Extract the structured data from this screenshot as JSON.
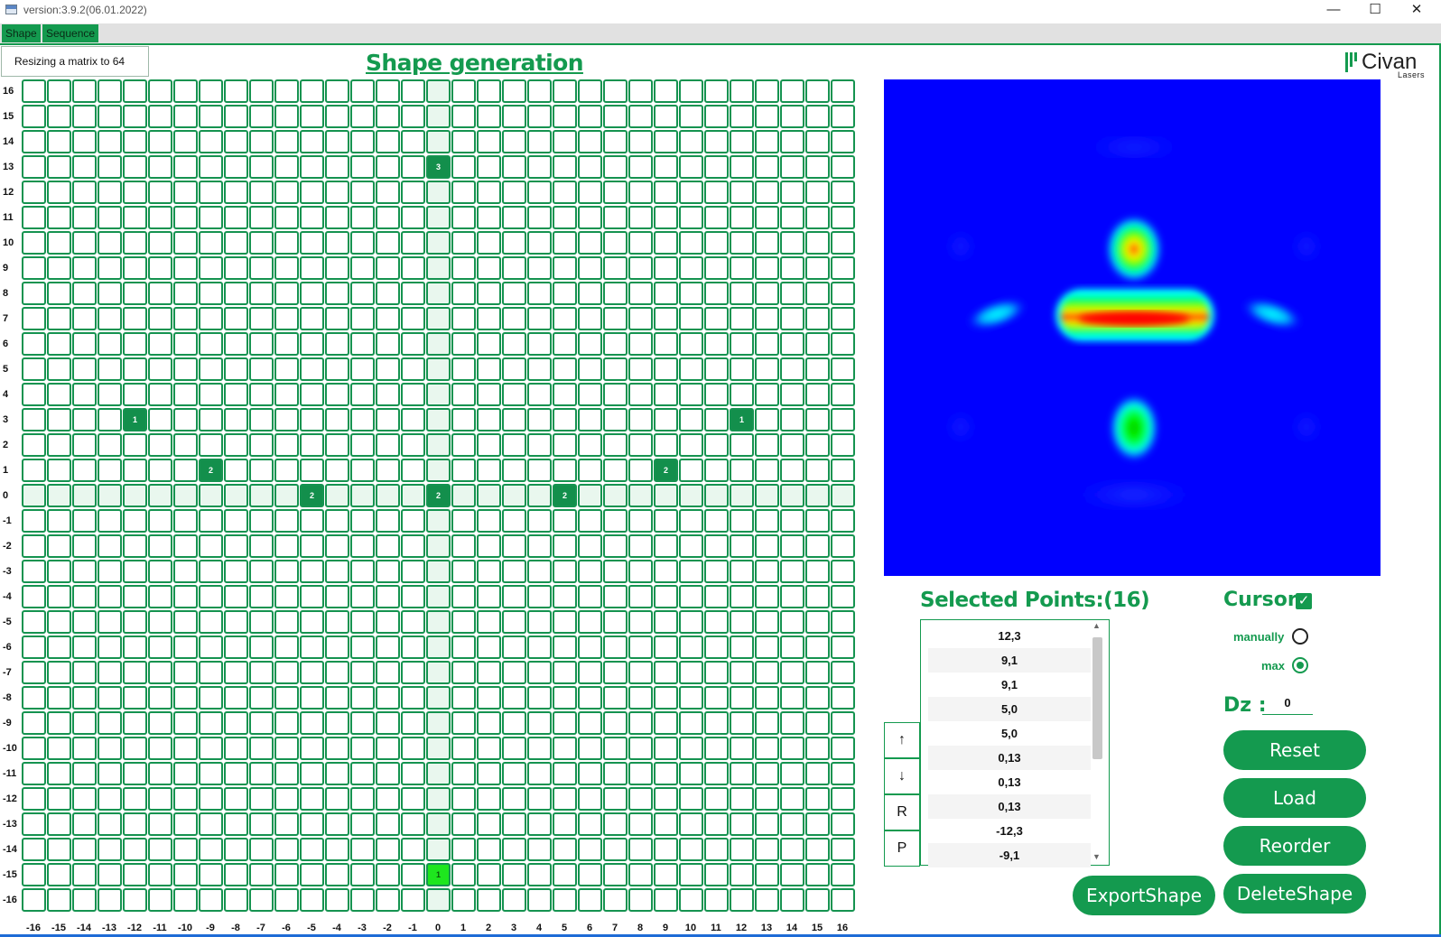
{
  "window": {
    "title": "version:3.9.2(06.01.2022)",
    "min_glyph": "—",
    "max_glyph": "☐",
    "close_glyph": "✕"
  },
  "menu": {
    "items": [
      "Shape",
      "Sequence"
    ]
  },
  "status": {
    "text": "Resizing a matrix to 64"
  },
  "page": {
    "title": "Shape generation"
  },
  "logo": {
    "name": "Civan",
    "sub": "Lasers"
  },
  "grid": {
    "x_labels": [
      "-16",
      "-15",
      "-14",
      "-13",
      "-12",
      "-11",
      "-10",
      "-9",
      "-8",
      "-7",
      "-6",
      "-5",
      "-4",
      "-3",
      "-2",
      "-1",
      "0",
      "1",
      "2",
      "3",
      "4",
      "5",
      "6",
      "7",
      "8",
      "9",
      "10",
      "11",
      "12",
      "13",
      "14",
      "15",
      "16"
    ],
    "y_labels": [
      "16",
      "15",
      "14",
      "13",
      "12",
      "11",
      "10",
      "9",
      "8",
      "7",
      "6",
      "5",
      "4",
      "3",
      "2",
      "1",
      "0",
      "-1",
      "-2",
      "-3",
      "-4",
      "-5",
      "-6",
      "-7",
      "-8",
      "-9",
      "-10",
      "-11",
      "-12",
      "-13",
      "-14",
      "-15",
      "-16"
    ],
    "selected": [
      {
        "x": 0,
        "y": 13,
        "count": "3"
      },
      {
        "x": -12,
        "y": 3,
        "count": "1"
      },
      {
        "x": 12,
        "y": 3,
        "count": "1"
      },
      {
        "x": -9,
        "y": 1,
        "count": "2"
      },
      {
        "x": 9,
        "y": 1,
        "count": "2"
      },
      {
        "x": -5,
        "y": 0,
        "count": "2"
      },
      {
        "x": 0,
        "y": 0,
        "count": "2"
      },
      {
        "x": 5,
        "y": 0,
        "count": "2"
      }
    ],
    "current": {
      "x": 0,
      "y": -15,
      "count": "1"
    }
  },
  "colors": {
    "accent": "#149a4f",
    "cell_selected": "#138f4c",
    "cell_current": "#1ee61e",
    "axis_fill": "#e9f7ee",
    "heatmap_bg": "#0000ff"
  },
  "selected_points": {
    "title": "Selected Points:(16)",
    "items": [
      "12,3",
      "9,1",
      "9,1",
      "5,0",
      "5,0",
      "0,13",
      "0,13",
      "0,13",
      "-12,3",
      "-9,1"
    ]
  },
  "side_buttons": [
    "↑",
    "↓",
    "R",
    "P"
  ],
  "cursor": {
    "label": "Cursor",
    "checked": true,
    "check_glyph": "✓",
    "options": [
      "manually",
      "max"
    ],
    "selected": "max"
  },
  "dz": {
    "label": "Dz :",
    "value": "0"
  },
  "buttons": {
    "reset": "Reset",
    "load": "Load",
    "reorder": "Reorder",
    "export": "ExportShape",
    "delete": "DeleteShape"
  }
}
